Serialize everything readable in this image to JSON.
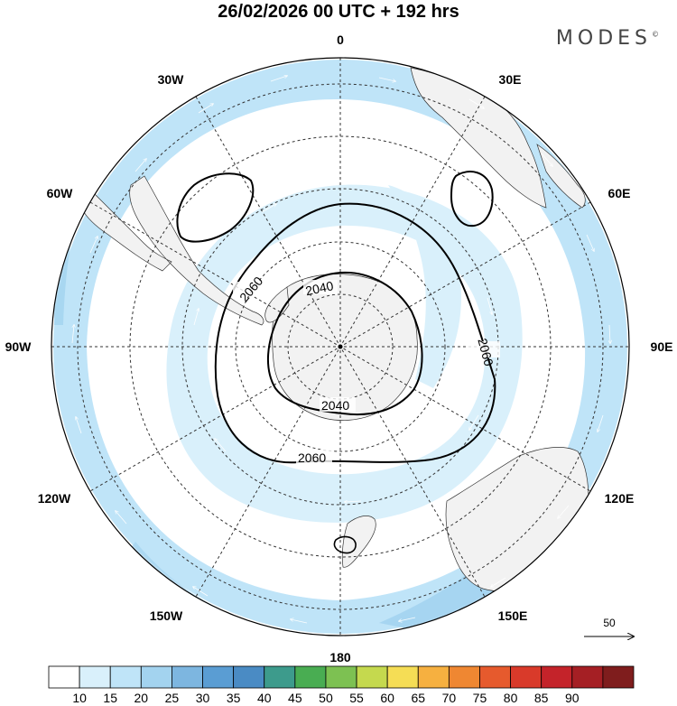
{
  "header": {
    "title": "26/02/2026  00 UTC  + 192 hrs",
    "brand": "MODES",
    "brand_mark": "©"
  },
  "map": {
    "projection": "south polar stereographic",
    "longitude_labels": {
      "top": "0",
      "top_right": "30E",
      "right_upper": "60E",
      "right": "90E",
      "right_lower": "120E",
      "bottom_right": "150E",
      "bottom": "180",
      "bottom_left": "150W",
      "left_lower": "120W",
      "left": "90W",
      "left_upper": "60W",
      "top_left": "30W"
    },
    "contour_labels": [
      "2060",
      "2040",
      "2060",
      "2040",
      "2060"
    ],
    "reference_vector": {
      "value": "50"
    }
  },
  "colorbar": {
    "ticks": [
      "10",
      "15",
      "20",
      "25",
      "30",
      "35",
      "40",
      "45",
      "50",
      "55",
      "60",
      "65",
      "70",
      "75",
      "80",
      "85",
      "90"
    ],
    "colors": [
      "#ffffff",
      "#d9f0fb",
      "#bfe4f8",
      "#a3d3ef",
      "#7db6e0",
      "#5a9dd3",
      "#4a8bc4",
      "#3d9b8c",
      "#49ad52",
      "#7dc152",
      "#c5d94e",
      "#f5dd55",
      "#f6b040",
      "#ef8732",
      "#e65a2d",
      "#d93a2a",
      "#c4232a",
      "#a51f24",
      "#7f1d1d"
    ]
  }
}
